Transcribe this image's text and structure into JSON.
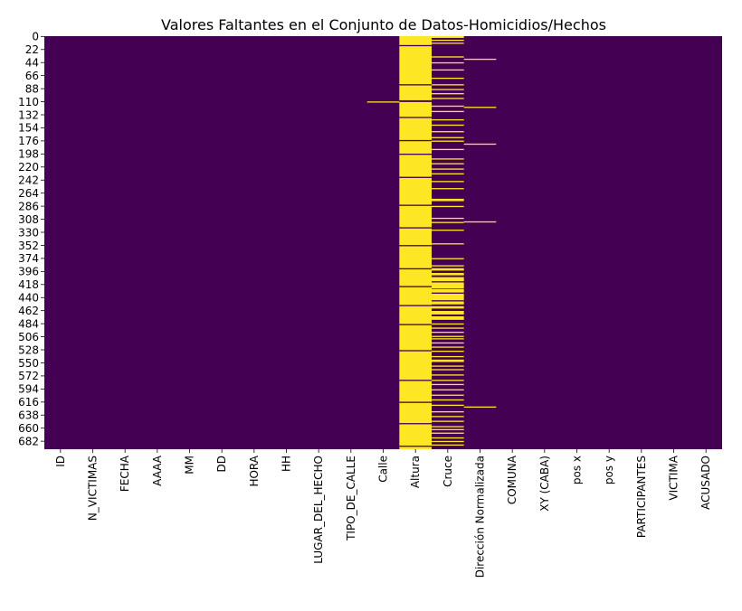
{
  "chart_data": {
    "type": "heatmap",
    "title": "Valores Faltantes en el Conjunto de Datos-Homicidios/Hechos",
    "xlabel": "",
    "ylabel": "",
    "columns": [
      "ID",
      "N_VICTIMAS",
      "FECHA",
      "AAAA",
      "MM",
      "DD",
      "HORA",
      "HH",
      "LUGAR_DEL_HECHO",
      "TIPO_DE_CALLE",
      "Calle",
      "Altura",
      "Cruce",
      "Dirección Normalizada",
      "COMUNA",
      "XY (CABA)",
      "pos x",
      "pos y",
      "PARTICIPANTES",
      "VICTIMA",
      "ACUSADO"
    ],
    "y_ticks": [
      "0",
      "22",
      "44",
      "66",
      "88",
      "110",
      "132",
      "154",
      "176",
      "198",
      "220",
      "242",
      "264",
      "286",
      "308",
      "330",
      "352",
      "374",
      "396",
      "418",
      "440",
      "462",
      "484",
      "506",
      "528",
      "550",
      "572",
      "594",
      "616",
      "638",
      "660",
      "682"
    ],
    "row_count": 696,
    "legend": "none",
    "colors": {
      "present": "#440154",
      "missing": "#fde725"
    },
    "missing": {
      "Calle": [
        [
          110,
          110
        ]
      ],
      "Altura": [
        [
          0,
          14
        ],
        [
          17,
          80
        ],
        [
          83,
          107
        ],
        [
          111,
          135
        ],
        [
          138,
          174
        ],
        [
          177,
          197
        ],
        [
          200,
          236
        ],
        [
          239,
          283
        ],
        [
          286,
          321
        ],
        [
          324,
          351
        ],
        [
          354,
          390
        ],
        [
          393,
          420
        ],
        [
          423,
          452
        ],
        [
          455,
          484
        ],
        [
          487,
          528
        ],
        [
          531,
          578
        ],
        [
          581,
          615
        ],
        [
          618,
          651
        ],
        [
          654,
          689
        ],
        [
          692,
          695
        ]
      ],
      "Cruce": [
        [
          0,
          2
        ],
        [
          6,
          6
        ],
        [
          11,
          11
        ],
        [
          34,
          35
        ],
        [
          44,
          44
        ],
        [
          56,
          57
        ],
        [
          70,
          70
        ],
        [
          81,
          82
        ],
        [
          89,
          89
        ],
        [
          96,
          97
        ],
        [
          104,
          104
        ],
        [
          117,
          118
        ],
        [
          126,
          127
        ],
        [
          140,
          141
        ],
        [
          149,
          150
        ],
        [
          160,
          161
        ],
        [
          170,
          171
        ],
        [
          176,
          177
        ],
        [
          190,
          190
        ],
        [
          206,
          207
        ],
        [
          214,
          215
        ],
        [
          223,
          224
        ],
        [
          231,
          232
        ],
        [
          244,
          245
        ],
        [
          256,
          257
        ],
        [
          274,
          277
        ],
        [
          286,
          287
        ],
        [
          306,
          306
        ],
        [
          313,
          314
        ],
        [
          326,
          327
        ],
        [
          349,
          349
        ],
        [
          374,
          375
        ],
        [
          386,
          387
        ],
        [
          391,
          394
        ],
        [
          399,
          402
        ],
        [
          406,
          412
        ],
        [
          415,
          424
        ],
        [
          426,
          431
        ],
        [
          434,
          444
        ],
        [
          447,
          451
        ],
        [
          455,
          458
        ],
        [
          463,
          468
        ],
        [
          472,
          477
        ],
        [
          484,
          485
        ],
        [
          491,
          492
        ],
        [
          498,
          499
        ],
        [
          505,
          506
        ],
        [
          509,
          510
        ],
        [
          516,
          517
        ],
        [
          523,
          524
        ],
        [
          530,
          531
        ],
        [
          539,
          540
        ],
        [
          545,
          548
        ],
        [
          555,
          555
        ],
        [
          561,
          562
        ],
        [
          570,
          571
        ],
        [
          579,
          580
        ],
        [
          586,
          587
        ],
        [
          595,
          596
        ],
        [
          604,
          605
        ],
        [
          612,
          613
        ],
        [
          621,
          622
        ],
        [
          632,
          633
        ],
        [
          640,
          641
        ],
        [
          648,
          649
        ],
        [
          657,
          658
        ],
        [
          662,
          663
        ],
        [
          668,
          669
        ],
        [
          676,
          677
        ],
        [
          682,
          683
        ],
        [
          688,
          689
        ]
      ],
      "Dirección Normalizada": [
        [
          38,
          38
        ],
        [
          119,
          119
        ],
        [
          181,
          181
        ],
        [
          312,
          312
        ],
        [
          624,
          624
        ]
      ]
    }
  }
}
